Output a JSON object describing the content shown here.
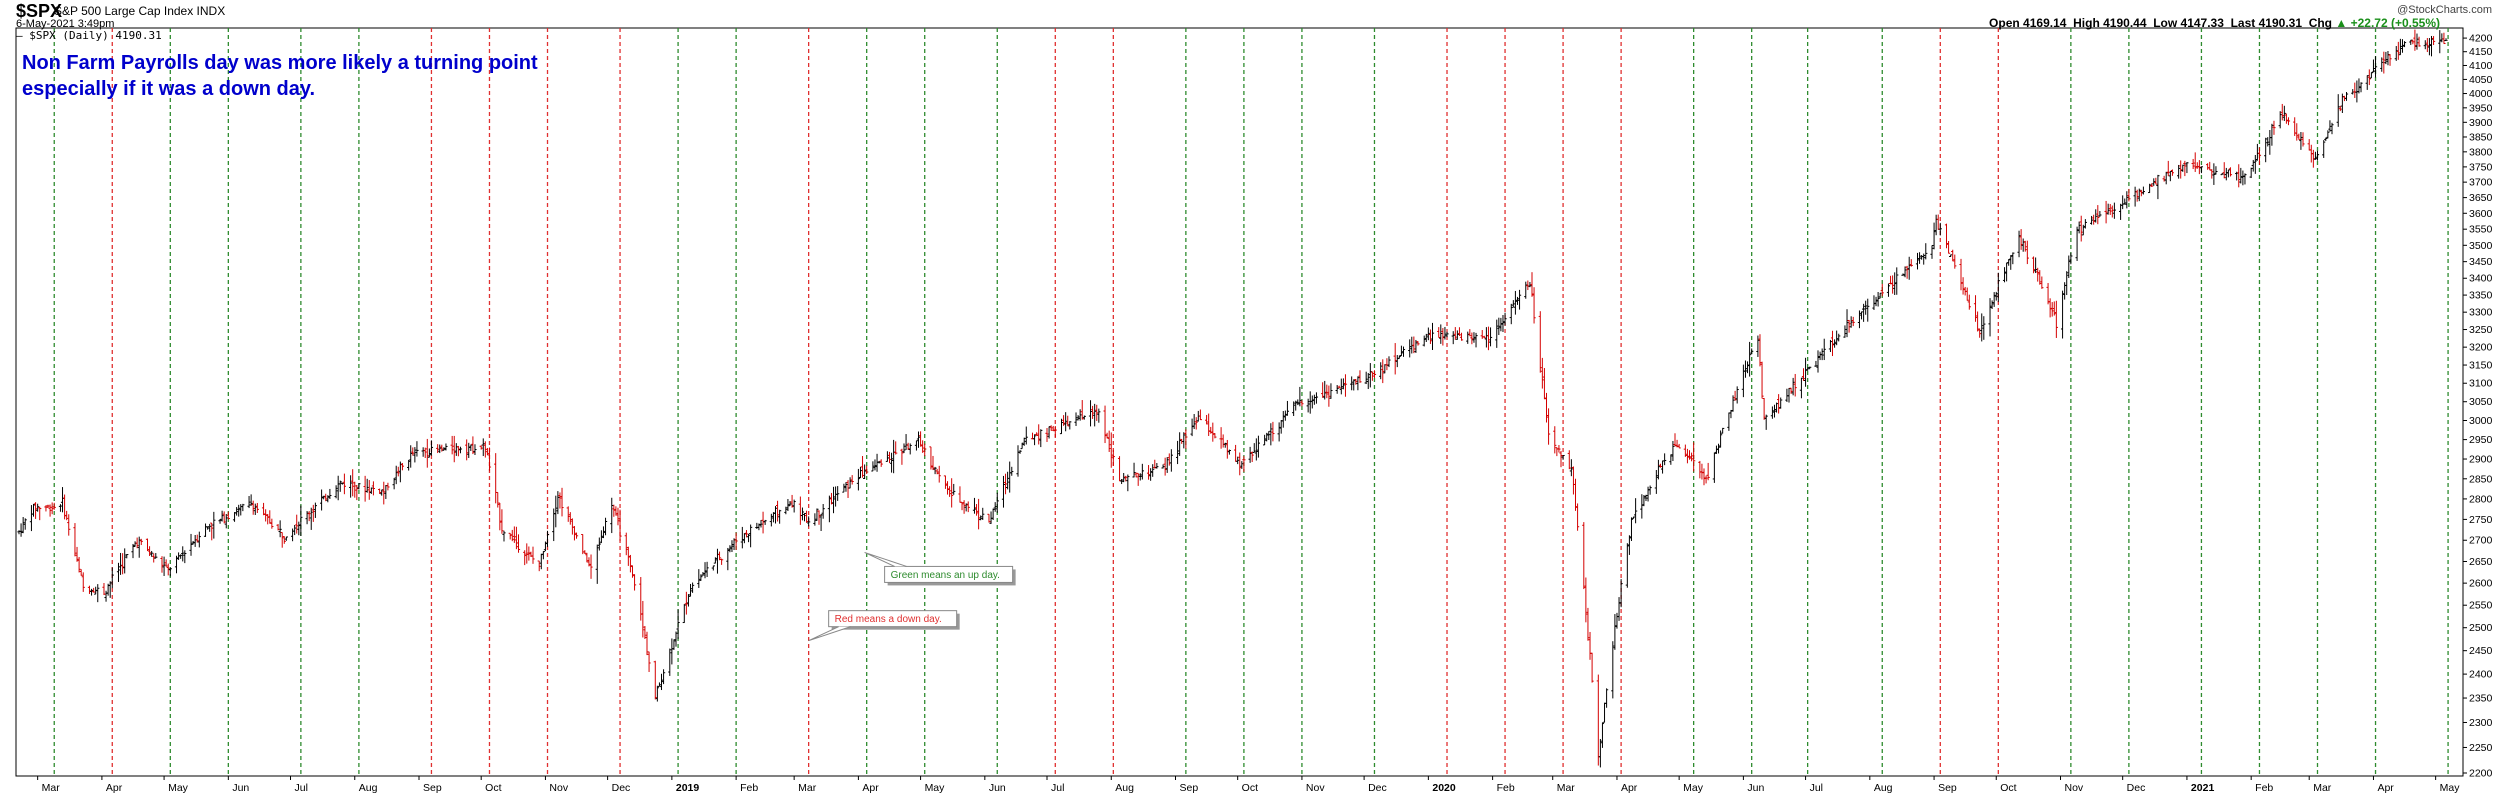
{
  "header": {
    "symbol": "$SPX",
    "index_name": "S&P 500 Large Cap Index  INDX",
    "timestamp": "6-May-2021 3:49pm",
    "legend": "— $SPX (Daily) 4190.31",
    "watermark": "@StockCharts.com",
    "open_label": "Open",
    "open": "4169.14",
    "high_label": "High",
    "high": "4190.44",
    "low_label": "Low",
    "low": "4147.33",
    "last_label": "Last",
    "last": "4190.31",
    "chg_label": "Chg",
    "chg": "+22.72 (+0.55%)",
    "chg_icon": "up-arrow-icon"
  },
  "annotation": {
    "line1": "Non Farm Payrolls day was more likely a turning point",
    "line2": "especially if it was a down day."
  },
  "colors": {
    "up_day": "#2e8b2e",
    "down_day": "#e03030",
    "annotation": "#0000cc",
    "price_bar": "#000000",
    "down_bar": "#d40000"
  },
  "chart_data": {
    "type": "ohlc",
    "title": "$SPX S&P 500 Large Cap Index",
    "series_name": "$SPX (Daily)",
    "x_axis": {
      "kind": "month",
      "start": "2018-02-20",
      "end": "2021-05-06",
      "tick_labels": [
        {
          "date": "2018-03-01",
          "label": "Mar"
        },
        {
          "date": "2018-04-01",
          "label": "Apr"
        },
        {
          "date": "2018-05-01",
          "label": "May"
        },
        {
          "date": "2018-06-01",
          "label": "Jun"
        },
        {
          "date": "2018-07-01",
          "label": "Jul"
        },
        {
          "date": "2018-08-01",
          "label": "Aug"
        },
        {
          "date": "2018-09-01",
          "label": "Sep"
        },
        {
          "date": "2018-10-01",
          "label": "Oct"
        },
        {
          "date": "2018-11-01",
          "label": "Nov"
        },
        {
          "date": "2018-12-01",
          "label": "Dec"
        },
        {
          "date": "2019-01-01",
          "label": "2019",
          "bold": true
        },
        {
          "date": "2019-02-01",
          "label": "Feb"
        },
        {
          "date": "2019-03-01",
          "label": "Mar"
        },
        {
          "date": "2019-04-01",
          "label": "Apr"
        },
        {
          "date": "2019-05-01",
          "label": "May"
        },
        {
          "date": "2019-06-01",
          "label": "Jun"
        },
        {
          "date": "2019-07-01",
          "label": "Jul"
        },
        {
          "date": "2019-08-01",
          "label": "Aug"
        },
        {
          "date": "2019-09-01",
          "label": "Sep"
        },
        {
          "date": "2019-10-01",
          "label": "Oct"
        },
        {
          "date": "2019-11-01",
          "label": "Nov"
        },
        {
          "date": "2019-12-01",
          "label": "Dec"
        },
        {
          "date": "2020-01-01",
          "label": "2020",
          "bold": true
        },
        {
          "date": "2020-02-01",
          "label": "Feb"
        },
        {
          "date": "2020-03-01",
          "label": "Mar"
        },
        {
          "date": "2020-04-01",
          "label": "Apr"
        },
        {
          "date": "2020-05-01",
          "label": "May"
        },
        {
          "date": "2020-06-01",
          "label": "Jun"
        },
        {
          "date": "2020-07-01",
          "label": "Jul"
        },
        {
          "date": "2020-08-01",
          "label": "Aug"
        },
        {
          "date": "2020-09-01",
          "label": "Sep"
        },
        {
          "date": "2020-10-01",
          "label": "Oct"
        },
        {
          "date": "2020-11-01",
          "label": "Nov"
        },
        {
          "date": "2020-12-01",
          "label": "Dec"
        },
        {
          "date": "2021-01-01",
          "label": "2021",
          "bold": true
        },
        {
          "date": "2021-02-01",
          "label": "Feb"
        },
        {
          "date": "2021-03-01",
          "label": "Mar"
        },
        {
          "date": "2021-04-01",
          "label": "Apr"
        },
        {
          "date": "2021-05-01",
          "label": "May"
        }
      ]
    },
    "y_axis": {
      "range": [
        2200,
        4230
      ],
      "ticks": [
        2200,
        2250,
        2300,
        2350,
        2400,
        2450,
        2500,
        2550,
        2600,
        2650,
        2700,
        2750,
        2800,
        2850,
        2900,
        2950,
        3000,
        3050,
        3100,
        3150,
        3200,
        3250,
        3300,
        3350,
        3400,
        3450,
        3500,
        3550,
        3600,
        3650,
        3700,
        3750,
        3800,
        3850,
        3900,
        3950,
        4000,
        4050,
        4100,
        4150,
        4200
      ],
      "position": "right",
      "scale": "log"
    },
    "grid": false,
    "nfp_days": [
      {
        "date": "2018-03-09",
        "direction": "up"
      },
      {
        "date": "2018-04-06",
        "direction": "down"
      },
      {
        "date": "2018-05-04",
        "direction": "up"
      },
      {
        "date": "2018-06-01",
        "direction": "up"
      },
      {
        "date": "2018-07-06",
        "direction": "up"
      },
      {
        "date": "2018-08-03",
        "direction": "up"
      },
      {
        "date": "2018-09-07",
        "direction": "down"
      },
      {
        "date": "2018-10-05",
        "direction": "down"
      },
      {
        "date": "2018-11-02",
        "direction": "down"
      },
      {
        "date": "2018-12-07",
        "direction": "down"
      },
      {
        "date": "2019-01-04",
        "direction": "up"
      },
      {
        "date": "2019-02-01",
        "direction": "up"
      },
      {
        "date": "2019-03-08",
        "direction": "down"
      },
      {
        "date": "2019-04-05",
        "direction": "up"
      },
      {
        "date": "2019-05-03",
        "direction": "up"
      },
      {
        "date": "2019-06-07",
        "direction": "up"
      },
      {
        "date": "2019-07-05",
        "direction": "down"
      },
      {
        "date": "2019-08-02",
        "direction": "down"
      },
      {
        "date": "2019-09-06",
        "direction": "up"
      },
      {
        "date": "2019-10-04",
        "direction": "up"
      },
      {
        "date": "2019-11-01",
        "direction": "up"
      },
      {
        "date": "2019-12-06",
        "direction": "up"
      },
      {
        "date": "2020-01-10",
        "direction": "down"
      },
      {
        "date": "2020-02-07",
        "direction": "down"
      },
      {
        "date": "2020-03-06",
        "direction": "down"
      },
      {
        "date": "2020-04-03",
        "direction": "down"
      },
      {
        "date": "2020-05-08",
        "direction": "up"
      },
      {
        "date": "2020-06-05",
        "direction": "up"
      },
      {
        "date": "2020-07-02",
        "direction": "up"
      },
      {
        "date": "2020-08-07",
        "direction": "up"
      },
      {
        "date": "2020-09-04",
        "direction": "down"
      },
      {
        "date": "2020-10-02",
        "direction": "down"
      },
      {
        "date": "2020-11-06",
        "direction": "up"
      },
      {
        "date": "2020-12-04",
        "direction": "up"
      },
      {
        "date": "2021-01-08",
        "direction": "up"
      },
      {
        "date": "2021-02-05",
        "direction": "up"
      },
      {
        "date": "2021-03-05",
        "direction": "up"
      },
      {
        "date": "2021-04-02",
        "direction": "up"
      },
      {
        "date": "2021-05-07",
        "direction": "up"
      }
    ],
    "price_path": [
      {
        "date": "2018-02-20",
        "value": 2720
      },
      {
        "date": "2018-02-27",
        "value": 2780
      },
      {
        "date": "2018-03-09",
        "value": 2780
      },
      {
        "date": "2018-03-13",
        "value": 2790
      },
      {
        "date": "2018-03-23",
        "value": 2590
      },
      {
        "date": "2018-04-02",
        "value": 2580
      },
      {
        "date": "2018-04-18",
        "value": 2700
      },
      {
        "date": "2018-05-03",
        "value": 2630
      },
      {
        "date": "2018-05-21",
        "value": 2730
      },
      {
        "date": "2018-06-12",
        "value": 2790
      },
      {
        "date": "2018-06-28",
        "value": 2710
      },
      {
        "date": "2018-07-25",
        "value": 2840
      },
      {
        "date": "2018-08-15",
        "value": 2820
      },
      {
        "date": "2018-08-29",
        "value": 2915
      },
      {
        "date": "2018-09-20",
        "value": 2930
      },
      {
        "date": "2018-10-03",
        "value": 2930
      },
      {
        "date": "2018-10-11",
        "value": 2730
      },
      {
        "date": "2018-10-29",
        "value": 2640
      },
      {
        "date": "2018-11-07",
        "value": 2810
      },
      {
        "date": "2018-11-23",
        "value": 2630
      },
      {
        "date": "2018-12-03",
        "value": 2790
      },
      {
        "date": "2018-12-14",
        "value": 2600
      },
      {
        "date": "2018-12-24",
        "value": 2350
      },
      {
        "date": "2019-01-10",
        "value": 2590
      },
      {
        "date": "2019-02-01",
        "value": 2700
      },
      {
        "date": "2019-02-28",
        "value": 2790
      },
      {
        "date": "2019-03-08",
        "value": 2745
      },
      {
        "date": "2019-04-01",
        "value": 2860
      },
      {
        "date": "2019-04-30",
        "value": 2945
      },
      {
        "date": "2019-05-14",
        "value": 2820
      },
      {
        "date": "2019-06-03",
        "value": 2745
      },
      {
        "date": "2019-06-20",
        "value": 2950
      },
      {
        "date": "2019-07-26",
        "value": 3025
      },
      {
        "date": "2019-08-05",
        "value": 2845
      },
      {
        "date": "2019-08-27",
        "value": 2880
      },
      {
        "date": "2019-09-12",
        "value": 3010
      },
      {
        "date": "2019-10-02",
        "value": 2885
      },
      {
        "date": "2019-10-30",
        "value": 3045
      },
      {
        "date": "2019-12-02",
        "value": 3115
      },
      {
        "date": "2019-12-31",
        "value": 3230
      },
      {
        "date": "2020-01-31",
        "value": 3230
      },
      {
        "date": "2020-02-19",
        "value": 3385
      },
      {
        "date": "2020-02-28",
        "value": 2955
      },
      {
        "date": "2020-03-10",
        "value": 2880
      },
      {
        "date": "2020-03-23",
        "value": 2237
      },
      {
        "date": "2020-04-08",
        "value": 2750
      },
      {
        "date": "2020-04-29",
        "value": 2940
      },
      {
        "date": "2020-05-14",
        "value": 2850
      },
      {
        "date": "2020-06-08",
        "value": 3230
      },
      {
        "date": "2020-06-11",
        "value": 3000
      },
      {
        "date": "2020-07-20",
        "value": 3250
      },
      {
        "date": "2020-08-31",
        "value": 3500
      },
      {
        "date": "2020-09-02",
        "value": 3580
      },
      {
        "date": "2020-09-23",
        "value": 3240
      },
      {
        "date": "2020-10-12",
        "value": 3530
      },
      {
        "date": "2020-10-30",
        "value": 3270
      },
      {
        "date": "2020-11-09",
        "value": 3550
      },
      {
        "date": "2020-12-31",
        "value": 3755
      },
      {
        "date": "2021-01-29",
        "value": 3715
      },
      {
        "date": "2021-02-16",
        "value": 3935
      },
      {
        "date": "2021-03-04",
        "value": 3770
      },
      {
        "date": "2021-03-17",
        "value": 3975
      },
      {
        "date": "2021-04-16",
        "value": 4185
      },
      {
        "date": "2021-05-06",
        "value": 4190
      }
    ],
    "callouts": [
      {
        "text": "Green means an up day.",
        "color_key": "up_day",
        "date": "2019-04-04",
        "value": 2620,
        "direction": "up"
      },
      {
        "text": "Red means a down day.",
        "color_key": "down_day",
        "date": "2019-03-08",
        "value": 2520,
        "direction": "down"
      }
    ]
  }
}
